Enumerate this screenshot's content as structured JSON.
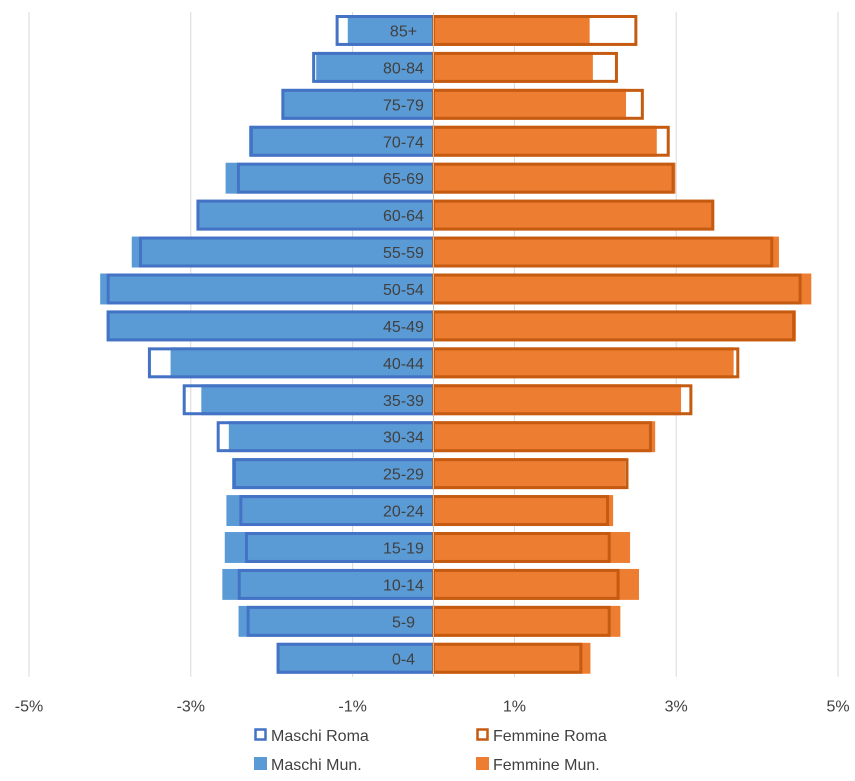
{
  "chart_data": {
    "type": "bar",
    "orientation": "horizontal",
    "layout": "population-pyramid",
    "categories": [
      "0-4",
      "5-9",
      "10-14",
      "15-19",
      "20-24",
      "25-29",
      "30-34",
      "35-39",
      "40-44",
      "45-49",
      "50-54",
      "55-59",
      "60-64",
      "65-69",
      "70-74",
      "75-79",
      "80-84",
      "85+"
    ],
    "series": [
      {
        "name": "Maschi Mun.",
        "side": "left",
        "style": "filled",
        "color": "#5B9BD5",
        "values": [
          1.93,
          2.41,
          2.61,
          2.58,
          2.56,
          2.49,
          2.53,
          2.87,
          3.25,
          4.04,
          4.12,
          3.73,
          2.93,
          2.57,
          2.28,
          1.88,
          1.45,
          1.06
        ]
      },
      {
        "name": "Femmine Mun.",
        "side": "right",
        "style": "filled",
        "color": "#ED7D31",
        "values": [
          1.94,
          2.31,
          2.54,
          2.43,
          2.22,
          2.37,
          2.74,
          3.06,
          3.71,
          4.48,
          4.67,
          4.27,
          3.47,
          2.99,
          2.76,
          2.38,
          1.97,
          1.93
        ]
      },
      {
        "name": "Maschi Roma",
        "side": "left",
        "style": "outline",
        "color": "#4472C4",
        "values": [
          1.94,
          2.31,
          2.42,
          2.33,
          2.4,
          2.48,
          2.68,
          3.1,
          3.53,
          4.04,
          4.04,
          3.64,
          2.93,
          2.43,
          2.27,
          1.88,
          1.5,
          1.21
        ]
      },
      {
        "name": "Femmine Roma",
        "side": "right",
        "style": "outline",
        "color": "#C55A11",
        "values": [
          1.84,
          2.19,
          2.3,
          2.19,
          2.17,
          2.41,
          2.7,
          3.2,
          3.78,
          4.47,
          4.55,
          4.2,
          3.47,
          2.98,
          2.92,
          2.6,
          2.28,
          2.52
        ]
      }
    ],
    "x_ticks": [
      "-5%",
      "-3%",
      "-1%",
      "1%",
      "3%",
      "5%"
    ],
    "x_tick_values": [
      -5,
      -3,
      -1,
      1,
      3,
      5
    ],
    "xlim": [
      -5,
      5
    ],
    "grid": "vertical",
    "legend": {
      "position": "bottom",
      "items": [
        {
          "label": "Maschi Roma",
          "style": "outline",
          "color": "#4472C4"
        },
        {
          "label": "Femmine Roma",
          "style": "outline",
          "color": "#C55A11"
        },
        {
          "label": "Maschi Mun.",
          "style": "filled",
          "color": "#5B9BD5"
        },
        {
          "label": "Femmine Mun.",
          "style": "filled",
          "color": "#ED7D31"
        }
      ]
    },
    "title": "",
    "xlabel": "",
    "ylabel": ""
  }
}
